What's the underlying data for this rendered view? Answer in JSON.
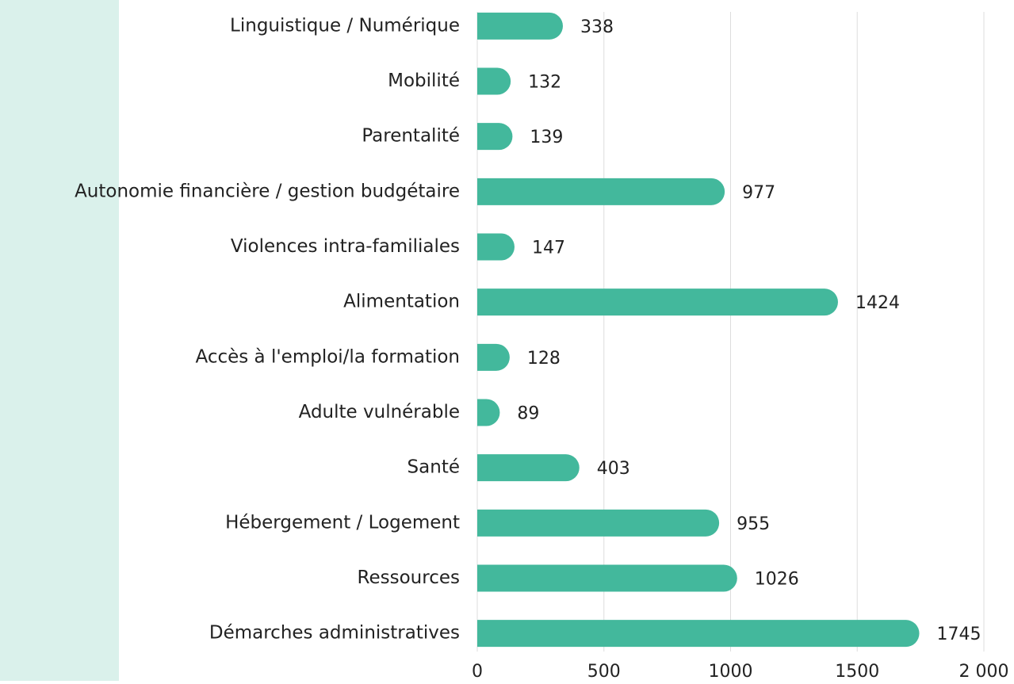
{
  "chart_data": {
    "type": "bar",
    "orientation": "horizontal",
    "categories": [
      "Linguistique / Numérique",
      "Mobilité",
      "Parentalité",
      "Autonomie financière / gestion budgétaire",
      "Violences intra-familiales",
      "Alimentation",
      "Accès à l'emploi/la formation",
      "Adulte vulnérable",
      "Santé",
      "Hébergement / Logement",
      "Ressources",
      "Démarches administratives"
    ],
    "values": [
      338,
      132,
      139,
      977,
      147,
      1424,
      128,
      89,
      403,
      955,
      1026,
      1745
    ],
    "color": "#43b89c",
    "xlim": [
      0,
      2000
    ],
    "xticks": [
      0,
      500,
      1000,
      1500,
      {
        "value": 2000,
        "label": "2 000"
      }
    ],
    "grid": true
  }
}
